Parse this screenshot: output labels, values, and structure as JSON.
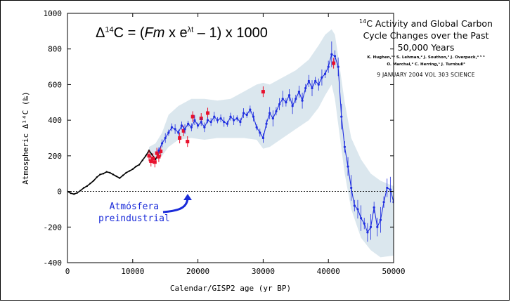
{
  "formula": {
    "prefix": "Δ",
    "sup1": "14",
    "mid": "C = (",
    "var": "Fm",
    "mid2": " x e",
    "sup2": "λt",
    "suffix": " – 1) x 1000"
  },
  "reference": {
    "title_sup": "14",
    "title_line1": "C Activity and Global Carbon",
    "title_line2": "Cycle Changes over the Past",
    "title_line3": "50,000 Years",
    "authors_line1": "K. Hughen,¹* S. Lehman,² J. Southon,³ J. Overpeck,⁴ ⁵ ⁶",
    "authors_line2": "O. Marchal,² C. Herring,¹ J. Turnbull³",
    "journal": "9 JANUARY 2004   VOL 303   SCIENCE"
  },
  "annotation": {
    "line1": "Atmósfera",
    "line2": "preindustrial"
  },
  "colors": {
    "main_series": "#1f2ee0",
    "treering_series": "#000000",
    "coral_series": "#e8112d",
    "band": "#dbe7ee",
    "annotation": "#1a2bd9"
  },
  "chart_data": {
    "type": "line",
    "xlabel": "Calendar/GISP2 age (yr BP)",
    "ylabel": "Atmospheric Δ¹⁴C (‰)",
    "xlim": [
      0,
      50000
    ],
    "ylim": [
      -400,
      1000
    ],
    "xticks": [
      0,
      10000,
      20000,
      30000,
      40000,
      50000
    ],
    "yticks": [
      -400,
      -200,
      0,
      200,
      400,
      600,
      800,
      1000
    ],
    "reference_line": {
      "y": 0,
      "style": "dotted"
    },
    "uncertainty_band": {
      "x": [
        12500,
        13500,
        14500,
        15500,
        17000,
        19000,
        21000,
        23000,
        25000,
        27000,
        29000,
        30000,
        31000,
        33000,
        35000,
        37000,
        38500,
        39500,
        40500,
        41000,
        41500,
        42500,
        43500,
        45000,
        46500,
        48000,
        50000
      ],
      "upper": [
        250,
        270,
        330,
        430,
        480,
        520,
        520,
        510,
        520,
        560,
        600,
        610,
        600,
        640,
        680,
        740,
        820,
        880,
        910,
        880,
        760,
        500,
        300,
        180,
        100,
        60,
        30
      ],
      "lower": [
        170,
        180,
        200,
        250,
        290,
        300,
        290,
        300,
        300,
        300,
        290,
        240,
        250,
        300,
        350,
        400,
        470,
        540,
        600,
        520,
        380,
        100,
        -100,
        -260,
        -330,
        -370,
        -360
      ]
    },
    "series": [
      {
        "name": "",
        "color_key": "treering_series",
        "x": [
          0,
          500,
          1000,
          1500,
          2000,
          2500,
          3000,
          3500,
          4000,
          4500,
          5000,
          5500,
          6000,
          6500,
          7000,
          7500,
          8000,
          8500,
          9000,
          9500,
          10000,
          10500,
          11000,
          11500,
          12000,
          12500,
          13000,
          13500,
          14000
        ],
        "y": [
          0,
          -10,
          -15,
          -8,
          5,
          20,
          30,
          45,
          60,
          80,
          95,
          100,
          110,
          105,
          95,
          85,
          75,
          90,
          105,
          115,
          125,
          140,
          150,
          175,
          200,
          230,
          205,
          180,
          215
        ]
      },
      {
        "name": "",
        "color_key": "coral_series",
        "x": [
          12500,
          12800,
          13100,
          13400,
          13700,
          14000,
          14300,
          17200,
          17800,
          18400,
          19200,
          20500,
          21500,
          30000,
          40800
        ],
        "y": [
          200,
          170,
          185,
          165,
          215,
          195,
          225,
          300,
          340,
          280,
          420,
          410,
          440,
          560,
          720
        ]
      },
      {
        "name": "",
        "color_key": "main_series",
        "x": [
          14000,
          14500,
          15000,
          15500,
          16000,
          16500,
          17000,
          17500,
          18000,
          18500,
          19000,
          19500,
          20000,
          20500,
          21000,
          21500,
          22000,
          22500,
          23000,
          23500,
          24000,
          24500,
          25000,
          25500,
          26000,
          26500,
          27000,
          27500,
          28000,
          28500,
          29000,
          29500,
          30000,
          30500,
          31000,
          31500,
          32000,
          32500,
          33000,
          33500,
          34000,
          34500,
          35000,
          35500,
          36000,
          36500,
          37000,
          37500,
          38000,
          38500,
          39000,
          39500,
          40000,
          40500,
          41000,
          41500,
          42000,
          42500,
          43000,
          43500,
          44000,
          44500,
          45000,
          45500,
          46000,
          46500,
          47000,
          47500,
          48000,
          48500,
          49000,
          49500,
          50000
        ],
        "y": [
          230,
          270,
          300,
          330,
          360,
          350,
          330,
          370,
          350,
          380,
          360,
          400,
          370,
          390,
          360,
          400,
          390,
          420,
          400,
          410,
          390,
          380,
          420,
          400,
          410,
          390,
          440,
          430,
          460,
          420,
          360,
          330,
          300,
          380,
          440,
          410,
          450,
          490,
          520,
          500,
          540,
          480,
          520,
          560,
          510,
          580,
          620,
          580,
          620,
          600,
          640,
          660,
          700,
          770,
          760,
          700,
          420,
          250,
          140,
          20,
          -80,
          -100,
          -150,
          -180,
          -230,
          -200,
          -90,
          -200,
          -160,
          -60,
          20,
          10,
          -60
        ]
      }
    ]
  }
}
